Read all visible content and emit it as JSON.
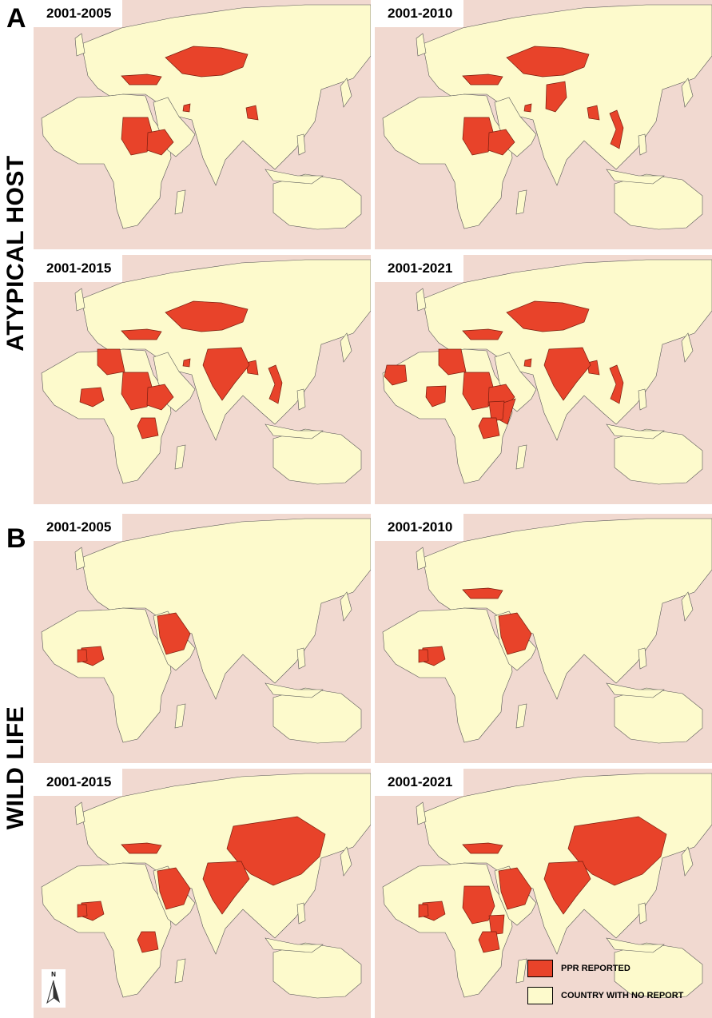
{
  "sections": [
    {
      "letter": "A",
      "label": "ATYPICAL HOST",
      "panels": [
        {
          "year": "2001-2005",
          "reported": [
            "kazakhstan",
            "turkey",
            "sudan",
            "ethiopia",
            "uae",
            "bangladesh"
          ]
        },
        {
          "year": "2001-2010",
          "reported": [
            "kazakhstan",
            "turkey",
            "sudan",
            "ethiopia",
            "uae",
            "bangladesh",
            "pakistan",
            "vietnam"
          ]
        },
        {
          "year": "2001-2015",
          "reported": [
            "kazakhstan",
            "turkey",
            "sudan",
            "ethiopia",
            "uae",
            "bangladesh",
            "vietnam",
            "india",
            "libya",
            "nigeria",
            "tanzania"
          ]
        },
        {
          "year": "2001-2021",
          "reported": [
            "kazakhstan",
            "turkey",
            "sudan",
            "ethiopia",
            "uae",
            "bangladesh",
            "vietnam",
            "india",
            "libya",
            "mauritania",
            "cameroon",
            "somalia",
            "kenya",
            "tanzania"
          ]
        }
      ]
    },
    {
      "letter": "B",
      "label": "WILD LIFE",
      "panels": [
        {
          "year": "2001-2005",
          "reported": [
            "saudi",
            "nigeria",
            "ivorycoast"
          ]
        },
        {
          "year": "2001-2010",
          "reported": [
            "saudi",
            "nigeria",
            "ivorycoast",
            "turkey"
          ]
        },
        {
          "year": "2001-2015",
          "reported": [
            "saudi",
            "nigeria",
            "ivorycoast",
            "turkey",
            "china",
            "india",
            "tanzania"
          ]
        },
        {
          "year": "2001-2021",
          "reported": [
            "saudi",
            "nigeria",
            "ivorycoast",
            "turkey",
            "china",
            "india",
            "sudan",
            "kenya",
            "tanzania"
          ]
        }
      ]
    }
  ],
  "legend": {
    "reported_label": "PPR REPORTED",
    "no_report_label": "COUNTRY WITH NO REPORT"
  },
  "north_label": "N",
  "colors": {
    "ocean": "#f1d9d0",
    "land": "#fdfacc",
    "reported": "#e8432a",
    "border": "#555555"
  }
}
